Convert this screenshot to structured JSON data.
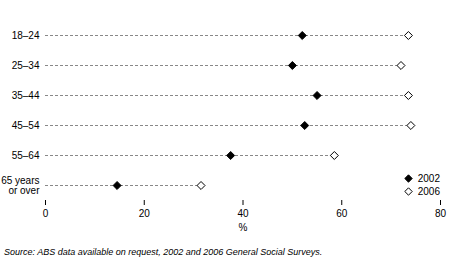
{
  "chart_data": {
    "type": "dot",
    "orientation": "horizontal",
    "categories": [
      "18–24",
      "25–34",
      "35–44",
      "45–54",
      "55–64",
      "65 years\nor over"
    ],
    "series": [
      {
        "name": "2002",
        "color": "#000000",
        "marker": "diamond",
        "values": [
          52,
          50,
          55,
          52.5,
          37.5,
          14.5
        ]
      },
      {
        "name": "2006",
        "color": "#000000",
        "marker": "diamond-open",
        "values": [
          73.5,
          72,
          73.5,
          74,
          58.5,
          31.5
        ]
      }
    ],
    "xlabel": "%",
    "xlim": [
      0,
      80
    ],
    "xticks": [
      0,
      20,
      40,
      60,
      80
    ],
    "legend": "bottom-right",
    "line_style": "dashed",
    "caption": "Source: ABS data available on request, 2002 and 2006 General Social Surveys."
  }
}
